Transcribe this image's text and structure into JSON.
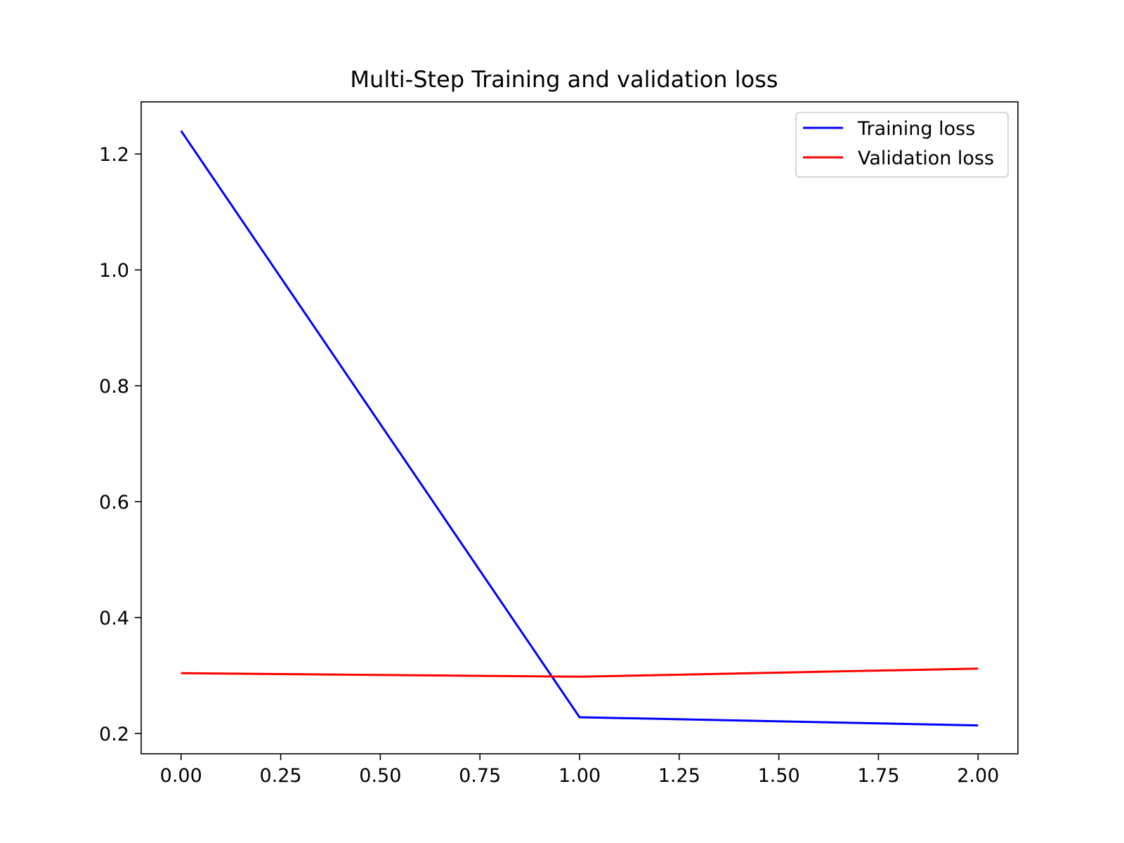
{
  "chart_data": {
    "type": "line",
    "title": "Multi-Step Training and validation loss",
    "xlabel": "",
    "ylabel": "",
    "xlim": [
      -0.1,
      2.1
    ],
    "ylim": [
      0.165,
      1.29
    ],
    "x_ticks": [
      {
        "value": 0.0,
        "label": "0.00"
      },
      {
        "value": 0.25,
        "label": "0.25"
      },
      {
        "value": 0.5,
        "label": "0.50"
      },
      {
        "value": 0.75,
        "label": "0.75"
      },
      {
        "value": 1.0,
        "label": "1.00"
      },
      {
        "value": 1.25,
        "label": "1.25"
      },
      {
        "value": 1.5,
        "label": "1.50"
      },
      {
        "value": 1.75,
        "label": "1.75"
      },
      {
        "value": 2.0,
        "label": "2.00"
      }
    ],
    "y_ticks": [
      {
        "value": 0.2,
        "label": "0.2"
      },
      {
        "value": 0.4,
        "label": "0.4"
      },
      {
        "value": 0.6,
        "label": "0.6"
      },
      {
        "value": 0.8,
        "label": "0.8"
      },
      {
        "value": 1.0,
        "label": "1.0"
      },
      {
        "value": 1.2,
        "label": "1.2"
      }
    ],
    "grid": false,
    "legend_position": "top-right",
    "x": [
      0,
      1,
      2
    ],
    "series": [
      {
        "name": "Training loss",
        "color": "#0000ff",
        "values": [
          1.24,
          0.228,
          0.214
        ]
      },
      {
        "name": "Validation loss",
        "color": "#ff0000",
        "values": [
          0.304,
          0.298,
          0.312
        ]
      }
    ]
  }
}
